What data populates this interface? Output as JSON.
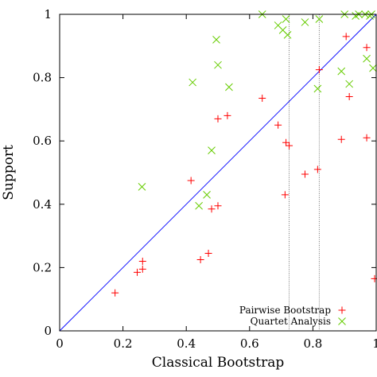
{
  "chart_data": {
    "type": "scatter",
    "xlabel": "Classical Bootstrap",
    "ylabel": "Support",
    "xlim": [
      0,
      1
    ],
    "ylim": [
      0,
      1
    ],
    "xticks": [
      "0",
      "0.2",
      "0.4",
      "0.6",
      "0.8",
      "1"
    ],
    "yticks": [
      "0",
      "0.2",
      "0.4",
      "0.6",
      "0.8",
      "1"
    ],
    "diagonal": {
      "color": "#0000ff",
      "from": [
        0,
        0
      ],
      "to": [
        1,
        1
      ]
    },
    "vertical_lines": [
      0.725,
      0.82
    ],
    "legend_position": "bottom-right",
    "series": [
      {
        "name": "Pairwise Bootstrap",
        "marker": "plus",
        "color": "#ff0000",
        "points": [
          [
            0.175,
            0.12
          ],
          [
            0.245,
            0.185
          ],
          [
            0.262,
            0.195
          ],
          [
            0.262,
            0.22
          ],
          [
            0.415,
            0.475
          ],
          [
            0.445,
            0.225
          ],
          [
            0.47,
            0.245
          ],
          [
            0.48,
            0.385
          ],
          [
            0.5,
            0.395
          ],
          [
            0.5,
            0.67
          ],
          [
            0.53,
            0.68
          ],
          [
            0.64,
            0.735
          ],
          [
            0.69,
            0.65
          ],
          [
            0.712,
            0.43
          ],
          [
            0.715,
            0.595
          ],
          [
            0.725,
            0.585
          ],
          [
            0.775,
            0.495
          ],
          [
            0.815,
            0.51
          ],
          [
            0.82,
            0.825
          ],
          [
            0.89,
            0.605
          ],
          [
            0.905,
            0.93
          ],
          [
            0.915,
            0.74
          ],
          [
            0.97,
            0.61
          ],
          [
            0.97,
            0.895
          ],
          [
            0.995,
            0.165
          ]
        ]
      },
      {
        "name": "Quartet Analysis",
        "marker": "cross",
        "color": "#66cc00",
        "points": [
          [
            0.26,
            0.455
          ],
          [
            0.42,
            0.785
          ],
          [
            0.44,
            0.395
          ],
          [
            0.465,
            0.43
          ],
          [
            0.48,
            0.57
          ],
          [
            0.495,
            0.92
          ],
          [
            0.5,
            0.84
          ],
          [
            0.535,
            0.77
          ],
          [
            0.64,
            1.0
          ],
          [
            0.69,
            0.965
          ],
          [
            0.705,
            0.95
          ],
          [
            0.715,
            0.985
          ],
          [
            0.72,
            0.935
          ],
          [
            0.775,
            0.975
          ],
          [
            0.815,
            0.765
          ],
          [
            0.82,
            0.985
          ],
          [
            0.89,
            0.82
          ],
          [
            0.9,
            1.0
          ],
          [
            0.915,
            0.78
          ],
          [
            0.935,
            0.995
          ],
          [
            0.945,
            1.0
          ],
          [
            0.965,
            1.0
          ],
          [
            0.97,
            0.86
          ],
          [
            0.98,
            0.995
          ],
          [
            0.985,
            1.0
          ],
          [
            0.99,
            0.83
          ]
        ]
      }
    ]
  }
}
